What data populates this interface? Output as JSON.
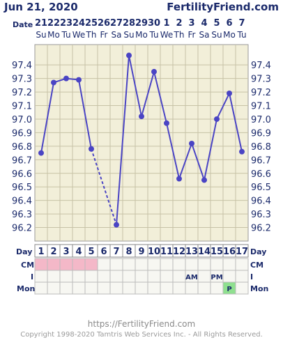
{
  "header": {
    "date": "Jun 21, 2020",
    "site": "FertilityFriend.com"
  },
  "row_labels": {
    "date": "Date",
    "day_left": "Day",
    "day_right": "Day",
    "cm_left": "CM",
    "cm_right": "CM",
    "i_left": "I",
    "i_right": "I",
    "mon_left": "Mon",
    "mon_right": "Mon"
  },
  "footer": {
    "url": "https://FertilityFriend.com",
    "copyright": "Copyright 1998-2020 Tamtris Web Services Inc. - All Rights Reserved."
  },
  "colors": {
    "line": "#4a44c4",
    "grid_bg": "#f2efd9",
    "grid_line": "#c7c2a6",
    "cm_pink": "#f4b8c8",
    "mon_green": "#8fe08f",
    "text": "#1b2a6b"
  },
  "chart_data": {
    "type": "line",
    "title": "",
    "ylim": [
      96.1,
      97.55
    ],
    "yticks": [
      "97.4",
      "97.3",
      "97.2",
      "97.1",
      "97.0",
      "96.9",
      "96.8",
      "96.7",
      "96.6",
      "96.5",
      "96.4",
      "96.3",
      "96.2"
    ],
    "dates": [
      "21",
      "22",
      "23",
      "24",
      "25",
      "26",
      "27",
      "28",
      "29",
      "30",
      "1",
      "2",
      "3",
      "4",
      "5",
      "6",
      "7"
    ],
    "weekdays": [
      "Su",
      "Mo",
      "Tu",
      "We",
      "Th",
      "Fr",
      "Sa",
      "Su",
      "Mo",
      "Tu",
      "We",
      "Th",
      "Fr",
      "Sa",
      "Su",
      "Mo",
      "Tu"
    ],
    "cycle_days": [
      "1",
      "2",
      "3",
      "4",
      "5",
      "6",
      "7",
      "8",
      "9",
      "10",
      "11",
      "12",
      "13",
      "14",
      "15",
      "16",
      "17"
    ],
    "series": [
      {
        "values": [
          96.75,
          97.27,
          97.3,
          97.29,
          96.78,
          null,
          96.22,
          97.47,
          97.02,
          97.35,
          96.97,
          96.56,
          96.82,
          96.55,
          97.0,
          97.19,
          96.76
        ]
      }
    ],
    "dashed_segments": [
      [
        4,
        6
      ]
    ],
    "cervical_mucus_days": [
      1,
      2,
      3,
      4,
      5
    ],
    "intercourse": [
      "",
      "",
      "",
      "",
      "",
      "",
      "",
      "",
      "",
      "",
      "",
      "",
      "AM",
      "",
      "PM",
      "",
      ""
    ],
    "monitor": [
      "",
      "",
      "",
      "",
      "",
      "",
      "",
      "",
      "",
      "",
      "",
      "",
      "",
      "",
      "",
      "P",
      ""
    ]
  }
}
